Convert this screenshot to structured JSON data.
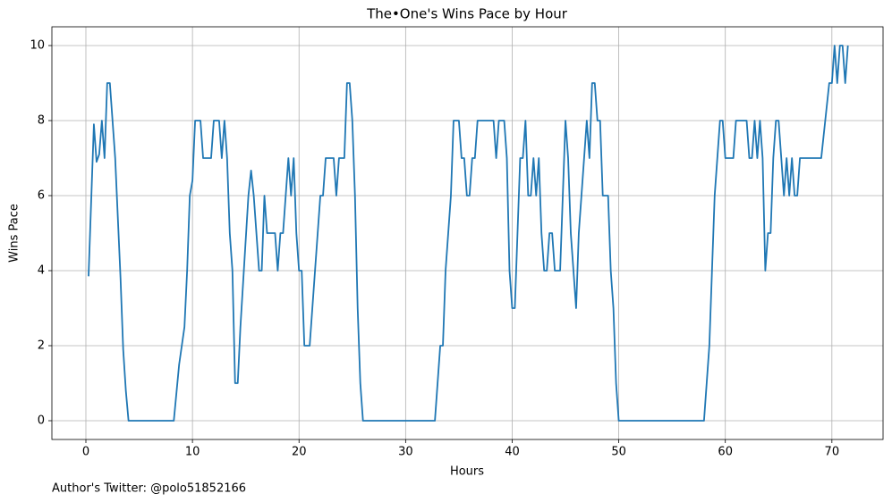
{
  "chart_data": {
    "type": "line",
    "title": "The•One's Wins Pace by Hour",
    "xlabel": "Hours",
    "ylabel": "Wins Pace",
    "annotation": "Author's Twitter: @polo51852166",
    "xlim": [
      -3.19,
      74.8
    ],
    "ylim": [
      -0.5,
      10.5
    ],
    "xticks": [
      0,
      10,
      20,
      30,
      40,
      50,
      60,
      70
    ],
    "yticks": [
      0,
      2,
      4,
      6,
      8,
      10
    ],
    "grid": true,
    "x": [
      0.25,
      0.75,
      1.0,
      1.25,
      1.5,
      1.75,
      2.0,
      2.25,
      2.75,
      3.25,
      3.5,
      3.75,
      4.0,
      8.25,
      8.75,
      9.25,
      9.5,
      9.75,
      10.0,
      10.25,
      10.75,
      11.0,
      11.75,
      12.0,
      12.5,
      12.75,
      13.0,
      13.25,
      13.5,
      13.75,
      14.0,
      14.25,
      14.5,
      15.25,
      15.5,
      15.75,
      16.0,
      16.25,
      16.5,
      16.75,
      17.0,
      17.75,
      18.0,
      18.25,
      18.5,
      19.0,
      19.25,
      19.5,
      19.75,
      20.0,
      20.25,
      20.5,
      21.0,
      21.5,
      22.0,
      22.25,
      22.5,
      23.25,
      23.5,
      23.75,
      24.25,
      24.5,
      24.75,
      25.0,
      25.25,
      25.5,
      25.75,
      26.0,
      32.75,
      33.25,
      33.5,
      33.75,
      34.25,
      34.5,
      35.0,
      35.25,
      35.5,
      35.75,
      36.0,
      36.25,
      36.5,
      36.75,
      38.25,
      38.5,
      38.75,
      39.25,
      39.5,
      39.75,
      40.0,
      40.25,
      40.5,
      40.75,
      41.0,
      41.25,
      41.5,
      41.75,
      42.0,
      42.25,
      42.5,
      42.75,
      43.0,
      43.25,
      43.5,
      43.75,
      44.0,
      44.5,
      44.75,
      45.0,
      45.25,
      45.5,
      46.0,
      46.25,
      47.0,
      47.25,
      47.5,
      47.75,
      48.0,
      48.25,
      48.5,
      49.0,
      49.25,
      49.5,
      49.75,
      50.0,
      58.0,
      58.5,
      58.75,
      59.0,
      59.5,
      59.75,
      60.0,
      60.75,
      61.0,
      62.0,
      62.25,
      62.5,
      62.75,
      63.0,
      63.25,
      63.5,
      63.75,
      64.0,
      64.25,
      64.5,
      64.75,
      65.0,
      65.25,
      65.5,
      65.75,
      66.0,
      66.25,
      66.5,
      66.75,
      67.0,
      69.0,
      69.75,
      70.0,
      70.25,
      70.5,
      70.75,
      71.0,
      71.25,
      71.5
    ],
    "series": [
      {
        "name": "Wins Pace",
        "color": "#1f77b4",
        "values": [
          3.85,
          7.9,
          6.9,
          7.1,
          8,
          7,
          9,
          9,
          7,
          3.8,
          1.9,
          0.8,
          0,
          0,
          1.5,
          2.5,
          4,
          6,
          6.4,
          8,
          8,
          7,
          7,
          8,
          8,
          7,
          8,
          7,
          5,
          4,
          1,
          1,
          2.5,
          6,
          6.67,
          6,
          5,
          4,
          4,
          6,
          5,
          5,
          4,
          5,
          5,
          7,
          6,
          7,
          5,
          4,
          4,
          2,
          2,
          4,
          6,
          6,
          7,
          7,
          6,
          7,
          7,
          9,
          9,
          8,
          6,
          3,
          1,
          0,
          0,
          2,
          2,
          4,
          6,
          8,
          8,
          7,
          7,
          6,
          6,
          7,
          7,
          8,
          8,
          7,
          8,
          8,
          7,
          4,
          3,
          3,
          5,
          7,
          7,
          8,
          6,
          6,
          7,
          6,
          7,
          5,
          4,
          4,
          5,
          5,
          4,
          4,
          6,
          8,
          7,
          5,
          3,
          5,
          8,
          7,
          9,
          9,
          8,
          8,
          6,
          6,
          4,
          3,
          1,
          0,
          0,
          2,
          4,
          6,
          8,
          8,
          7,
          7,
          8,
          8,
          7,
          7,
          8,
          7,
          8,
          7,
          4,
          5,
          5,
          7,
          8,
          8,
          7,
          6,
          7,
          6,
          7,
          6,
          6,
          7,
          7,
          9,
          9,
          10,
          9,
          10,
          10,
          9,
          10
        ]
      }
    ]
  }
}
